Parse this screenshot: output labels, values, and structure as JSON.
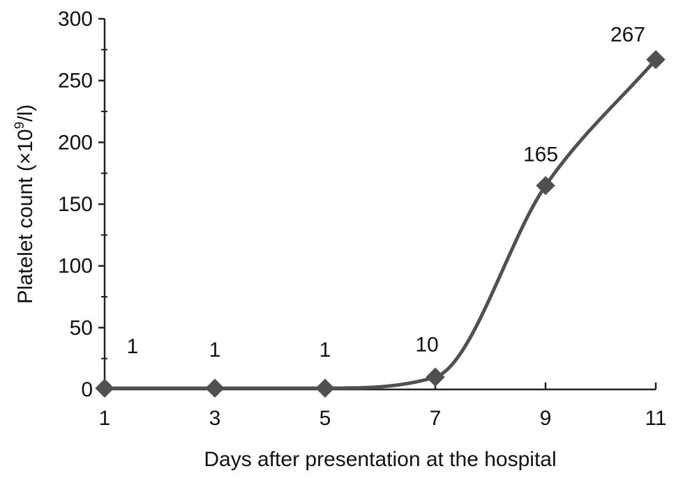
{
  "chart_data": {
    "type": "line",
    "title": "",
    "xlabel": "Days after presentation at the hospital",
    "ylabel": {
      "prefix": "Platelet count (×10",
      "superscript": "9",
      "suffix": "/l)"
    },
    "x": [
      1,
      3,
      5,
      7,
      9,
      11
    ],
    "series": [
      {
        "values": [
          1,
          1,
          1,
          10,
          165,
          267
        ],
        "data_labels": [
          "1",
          "1",
          "1",
          "10",
          "165",
          "267"
        ],
        "marker": "diamond",
        "color": "#505050",
        "smooth": true
      }
    ],
    "xlim": [
      1,
      11
    ],
    "ylim": [
      0,
      300
    ],
    "xticks": [
      1,
      3,
      5,
      7,
      9,
      11
    ],
    "yticks": [
      0,
      50,
      100,
      150,
      200,
      250,
      300
    ],
    "grid": false,
    "legend": "none"
  }
}
